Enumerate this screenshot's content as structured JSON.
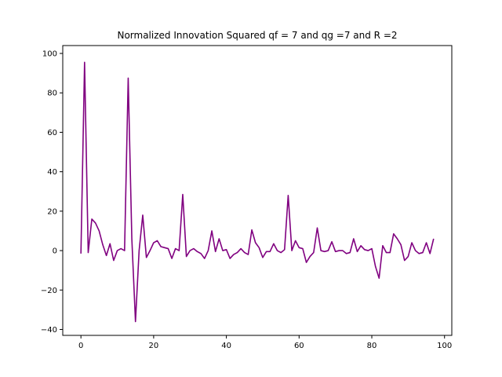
{
  "chart_data": {
    "type": "line",
    "title": "Normalized Innovation Squared qf = 7 and qg =7 and  R =2",
    "xlabel": "",
    "ylabel": "",
    "xlim": [
      -5,
      102
    ],
    "ylim": [
      -43,
      104
    ],
    "xticks": [
      0,
      20,
      40,
      60,
      80,
      100
    ],
    "yticks": [
      -40,
      -20,
      0,
      20,
      40,
      60,
      80,
      100
    ],
    "grid": false,
    "line_color": "#800080",
    "series": [
      {
        "x": [
          0,
          1,
          2,
          3,
          4,
          5,
          6,
          7,
          8,
          9,
          10,
          11,
          12,
          13,
          14,
          15,
          16,
          17,
          18,
          19,
          20,
          21,
          22,
          23,
          24,
          25,
          26,
          27,
          28,
          29,
          30,
          31,
          32,
          33,
          34,
          35,
          36,
          37,
          38,
          39,
          40,
          41,
          42,
          43,
          44,
          45,
          46,
          47,
          48,
          49,
          50,
          51,
          52,
          53,
          54,
          55,
          56,
          57,
          58,
          59,
          60,
          61,
          62,
          63,
          64,
          65,
          66,
          67,
          68,
          69,
          70,
          71,
          72,
          73,
          74,
          75,
          76,
          77,
          78,
          79,
          80,
          81,
          82,
          83,
          84,
          85,
          86,
          87,
          88,
          89,
          90,
          91,
          92,
          93,
          94,
          95,
          96,
          97
        ],
        "values": [
          -1.5,
          95.5,
          -1,
          16,
          14,
          10,
          3,
          -2.5,
          3.5,
          -5,
          0,
          1,
          0,
          87.5,
          6,
          -36,
          0,
          18,
          -3.5,
          0,
          4,
          5,
          2,
          1.5,
          1,
          -4,
          1,
          0,
          28.5,
          -3,
          0,
          1,
          -0.5,
          -1.5,
          -4,
          0,
          10,
          -0.5,
          6,
          0,
          0.5,
          -4,
          -2,
          -1,
          1,
          -1,
          -2,
          10.5,
          4,
          1.5,
          -3.5,
          -0.5,
          -0.5,
          3.5,
          0,
          -1,
          0.5,
          28,
          0,
          5,
          1.5,
          1,
          -6,
          -3,
          -1,
          11.5,
          0,
          -0.5,
          0,
          4.5,
          -0.5,
          0,
          0,
          -1.5,
          -1,
          6,
          -0.5,
          2.5,
          0.5,
          0,
          1,
          -8,
          -14,
          2.5,
          -1,
          -1,
          8.5,
          6,
          3,
          -5,
          -3,
          4,
          0,
          -1.5,
          -1,
          4,
          -1.5,
          6
        ]
      }
    ]
  }
}
